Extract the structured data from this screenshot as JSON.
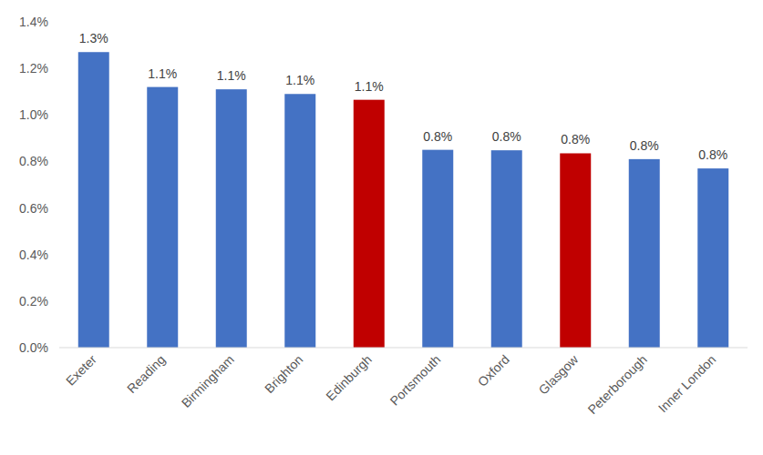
{
  "chart_data": {
    "type": "bar",
    "categories": [
      "Exeter",
      "Reading",
      "Birmingham",
      "Brighton",
      "Edinburgh",
      "Portsmouth",
      "Oxford",
      "Glasgow",
      "Peterborough",
      "Inner London"
    ],
    "values": [
      1.27,
      1.12,
      1.11,
      1.09,
      1.065,
      0.85,
      0.848,
      0.835,
      0.81,
      0.77
    ],
    "value_labels": [
      "1.3%",
      "1.1%",
      "1.1%",
      "1.1%",
      "1.1%",
      "0.8%",
      "0.8%",
      "0.8%",
      "0.8%",
      "0.8%"
    ],
    "colors": [
      "#4472c4",
      "#4472c4",
      "#4472c4",
      "#4472c4",
      "#c00000",
      "#4472c4",
      "#4472c4",
      "#c00000",
      "#4472c4",
      "#4472c4"
    ],
    "ylim": [
      0,
      1.4
    ],
    "yticks": [
      {
        "value": 0,
        "label": "0.0%"
      },
      {
        "value": 0.2,
        "label": "0.2%"
      },
      {
        "value": 0.4,
        "label": "0.4%"
      },
      {
        "value": 0.6,
        "label": "0.6%"
      },
      {
        "value": 0.8,
        "label": "0.8%"
      },
      {
        "value": 1.0,
        "label": "1.0%"
      },
      {
        "value": 1.2,
        "label": "1.2%"
      },
      {
        "value": 1.4,
        "label": "1.4%"
      }
    ],
    "grid": false,
    "data_labels": true
  }
}
